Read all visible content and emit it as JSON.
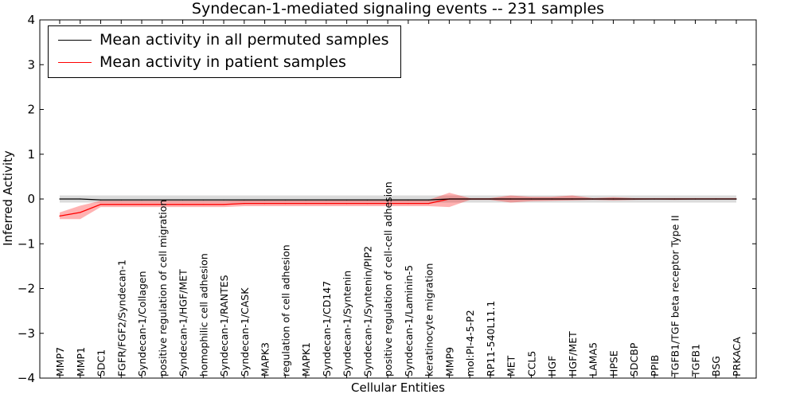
{
  "chart_data": {
    "type": "line",
    "title": "Syndecan-1-mediated signaling events -- 231 samples",
    "xlabel": "Cellular Entities",
    "ylabel": "Inferred Activity",
    "ylim": [
      -4,
      4
    ],
    "yticks": [
      -4,
      -3,
      -2,
      -1,
      0,
      1,
      2,
      3,
      4
    ],
    "legend_position": "top-left",
    "categories": [
      "MMP7",
      "MMP1",
      "SDC1",
      "FGFR/FGF2/Syndecan-1",
      "Syndecan-1/Collagen",
      "positive regulation of cell migration",
      "Syndecan-1/HGF/MET",
      "homophilic cell adhesion",
      "Syndecan-1/RANTES",
      "Syndecan-1/CASK",
      "MAPK3",
      "regulation of cell adhesion",
      "MAPK1",
      "Syndecan-1/CD147",
      "Syndecan-1/Syntenin",
      "Syndecan-1/Syntenin/PIP2",
      "positive regulation of cell-cell adhesion",
      "Syndecan-1/Laminin-5",
      "keratinocyte migration",
      "MMP9",
      "mol:PI-4-5-P2",
      "RP11-540L11.1",
      "MET",
      "CCL5",
      "HGF",
      "HGF/MET",
      "LAMA5",
      "HPSE",
      "SDCBP",
      "PPIB",
      "TGFB1/TGF beta receptor Type II",
      "TGFB1",
      "BSG",
      "PRKACA"
    ],
    "series": [
      {
        "name": "Mean activity in all permuted samples",
        "color": "#000000",
        "values": [
          0.0,
          0.0,
          -0.02,
          -0.02,
          -0.02,
          -0.02,
          -0.02,
          -0.02,
          -0.02,
          -0.02,
          -0.02,
          -0.02,
          -0.02,
          -0.02,
          -0.02,
          -0.02,
          -0.02,
          -0.02,
          -0.02,
          0.0,
          0.0,
          0.0,
          0.0,
          0.0,
          0.0,
          0.0,
          0.0,
          0.0,
          0.0,
          0.0,
          0.0,
          0.0,
          0.0,
          0.0
        ],
        "band_lower": [
          -0.08,
          -0.08,
          -0.08,
          -0.08,
          -0.08,
          -0.08,
          -0.08,
          -0.08,
          -0.08,
          -0.08,
          -0.08,
          -0.08,
          -0.08,
          -0.08,
          -0.08,
          -0.08,
          -0.08,
          -0.08,
          -0.08,
          -0.08,
          -0.08,
          -0.08,
          -0.08,
          -0.08,
          -0.08,
          -0.08,
          -0.08,
          -0.08,
          -0.08,
          -0.08,
          -0.08,
          -0.08,
          -0.08,
          -0.08
        ],
        "band_upper": [
          0.08,
          0.08,
          0.08,
          0.08,
          0.08,
          0.08,
          0.08,
          0.08,
          0.08,
          0.08,
          0.08,
          0.08,
          0.08,
          0.08,
          0.08,
          0.08,
          0.08,
          0.08,
          0.08,
          0.08,
          0.08,
          0.08,
          0.08,
          0.08,
          0.08,
          0.08,
          0.08,
          0.08,
          0.08,
          0.08,
          0.08,
          0.08,
          0.08,
          0.08
        ]
      },
      {
        "name": "Mean activity in patient samples",
        "color": "#ff0000",
        "values": [
          -0.38,
          -0.3,
          -0.12,
          -0.12,
          -0.12,
          -0.12,
          -0.12,
          -0.12,
          -0.12,
          -0.1,
          -0.1,
          -0.1,
          -0.1,
          -0.1,
          -0.1,
          -0.1,
          -0.1,
          -0.1,
          -0.1,
          0.0,
          0.0,
          0.0,
          0.0,
          0.0,
          0.0,
          0.0,
          0.0,
          0.0,
          0.0,
          0.0,
          0.0,
          0.0,
          0.0,
          0.0
        ],
        "band_lower": [
          -0.45,
          -0.45,
          -0.18,
          -0.18,
          -0.18,
          -0.18,
          -0.18,
          -0.18,
          -0.18,
          -0.16,
          -0.16,
          -0.16,
          -0.16,
          -0.16,
          -0.16,
          -0.16,
          -0.16,
          -0.16,
          -0.16,
          -0.18,
          -0.02,
          -0.02,
          -0.08,
          -0.05,
          -0.04,
          -0.03,
          -0.02,
          -0.03,
          -0.02,
          -0.01,
          -0.02,
          -0.01,
          -0.01,
          -0.01
        ],
        "band_upper": [
          -0.3,
          -0.15,
          -0.04,
          -0.04,
          -0.04,
          -0.04,
          -0.04,
          -0.04,
          -0.04,
          -0.03,
          -0.03,
          -0.03,
          -0.03,
          -0.03,
          -0.02,
          -0.02,
          -0.02,
          -0.02,
          -0.02,
          0.14,
          0.02,
          0.02,
          0.08,
          0.05,
          0.05,
          0.08,
          0.02,
          0.04,
          0.02,
          0.02,
          0.02,
          0.02,
          0.02,
          0.02
        ]
      }
    ]
  }
}
